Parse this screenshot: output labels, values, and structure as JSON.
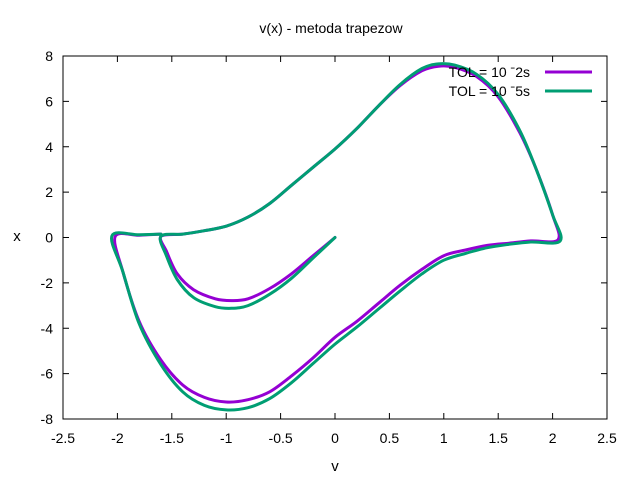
{
  "chart_data": {
    "type": "line",
    "title": "v(x)  -  metoda  trapezow",
    "xlabel": "v",
    "ylabel": "x",
    "xlim": [
      -2.5,
      2.5
    ],
    "ylim": [
      -8,
      8
    ],
    "xticks": [
      -2.5,
      -2,
      -1.5,
      -1,
      -0.5,
      0,
      0.5,
      1,
      1.5,
      2,
      2.5
    ],
    "yticks": [
      -8,
      -6,
      -4,
      -2,
      0,
      2,
      4,
      6,
      8
    ],
    "xtick_labels": [
      "-2.5",
      "-2",
      "-1.5",
      "-1",
      "-0.5",
      "0",
      "0.5",
      "1",
      "1.5",
      "2",
      "2.5"
    ],
    "ytick_labels": [
      "-8",
      "-6",
      "-4",
      "-2",
      "0",
      "2",
      "4",
      "6",
      "8"
    ],
    "grid": false,
    "legend_position": "top-right",
    "series": [
      {
        "name": "TOL = 10^-2s",
        "legend_label": "TOL = 10 ˉ2s",
        "color": "#9400d3",
        "points": [
          [
            0,
            0
          ],
          [
            -0.2,
            -0.8
          ],
          [
            -0.4,
            -1.6
          ],
          [
            -0.6,
            -2.25
          ],
          [
            -0.8,
            -2.7
          ],
          [
            -0.95,
            -2.78
          ],
          [
            -1.1,
            -2.7
          ],
          [
            -1.3,
            -2.3
          ],
          [
            -1.45,
            -1.6
          ],
          [
            -1.55,
            -0.6
          ],
          [
            -1.6,
            0.05
          ],
          [
            -1.4,
            0.15
          ],
          [
            -1.2,
            0.3
          ],
          [
            -1.0,
            0.5
          ],
          [
            -0.8,
            0.9
          ],
          [
            -0.6,
            1.5
          ],
          [
            -0.4,
            2.3
          ],
          [
            -0.2,
            3.1
          ],
          [
            0,
            3.9
          ],
          [
            0.2,
            4.8
          ],
          [
            0.4,
            5.8
          ],
          [
            0.6,
            6.7
          ],
          [
            0.8,
            7.35
          ],
          [
            0.95,
            7.55
          ],
          [
            1.1,
            7.5
          ],
          [
            1.3,
            7.1
          ],
          [
            1.5,
            6.2
          ],
          [
            1.7,
            4.6
          ],
          [
            1.85,
            3.0
          ],
          [
            2.0,
            1.0
          ],
          [
            2.05,
            -0.1
          ],
          [
            1.8,
            -0.15
          ],
          [
            1.6,
            -0.25
          ],
          [
            1.4,
            -0.35
          ],
          [
            1.2,
            -0.55
          ],
          [
            1.0,
            -0.8
          ],
          [
            0.8,
            -1.4
          ],
          [
            0.6,
            -2.1
          ],
          [
            0.4,
            -2.9
          ],
          [
            0.2,
            -3.7
          ],
          [
            0,
            -4.4
          ],
          [
            -0.2,
            -5.3
          ],
          [
            -0.4,
            -6.1
          ],
          [
            -0.6,
            -6.8
          ],
          [
            -0.8,
            -7.15
          ],
          [
            -1.0,
            -7.25
          ],
          [
            -1.2,
            -7.05
          ],
          [
            -1.4,
            -6.5
          ],
          [
            -1.6,
            -5.4
          ],
          [
            -1.8,
            -3.7
          ],
          [
            -1.95,
            -1.5
          ],
          [
            -2.02,
            0.05
          ],
          [
            -1.8,
            0.1
          ],
          [
            -1.6,
            0.15
          ]
        ]
      },
      {
        "name": "TOL = 10^-5s",
        "legend_label": "TOL = 10 ˉ5s",
        "color": "#009e73",
        "points": [
          [
            0,
            0
          ],
          [
            -0.2,
            -0.9
          ],
          [
            -0.4,
            -1.8
          ],
          [
            -0.6,
            -2.5
          ],
          [
            -0.8,
            -3.0
          ],
          [
            -0.95,
            -3.12
          ],
          [
            -1.1,
            -3.05
          ],
          [
            -1.3,
            -2.65
          ],
          [
            -1.45,
            -1.85
          ],
          [
            -1.55,
            -0.8
          ],
          [
            -1.6,
            0.05
          ],
          [
            -1.4,
            0.15
          ],
          [
            -1.2,
            0.3
          ],
          [
            -1.0,
            0.5
          ],
          [
            -0.8,
            0.9
          ],
          [
            -0.6,
            1.5
          ],
          [
            -0.4,
            2.3
          ],
          [
            -0.2,
            3.1
          ],
          [
            0,
            3.9
          ],
          [
            0.2,
            4.8
          ],
          [
            0.4,
            5.8
          ],
          [
            0.6,
            6.75
          ],
          [
            0.8,
            7.45
          ],
          [
            0.95,
            7.65
          ],
          [
            1.1,
            7.6
          ],
          [
            1.3,
            7.2
          ],
          [
            1.5,
            6.3
          ],
          [
            1.7,
            4.7
          ],
          [
            1.85,
            3.0
          ],
          [
            2.0,
            1.0
          ],
          [
            2.07,
            -0.15
          ],
          [
            1.8,
            -0.2
          ],
          [
            1.6,
            -0.3
          ],
          [
            1.4,
            -0.45
          ],
          [
            1.2,
            -0.7
          ],
          [
            1.0,
            -1.0
          ],
          [
            0.8,
            -1.6
          ],
          [
            0.6,
            -2.35
          ],
          [
            0.4,
            -3.15
          ],
          [
            0.2,
            -3.95
          ],
          [
            0,
            -4.7
          ],
          [
            -0.2,
            -5.55
          ],
          [
            -0.4,
            -6.4
          ],
          [
            -0.6,
            -7.1
          ],
          [
            -0.8,
            -7.5
          ],
          [
            -1.0,
            -7.6
          ],
          [
            -1.2,
            -7.4
          ],
          [
            -1.4,
            -6.8
          ],
          [
            -1.6,
            -5.6
          ],
          [
            -1.8,
            -3.8
          ],
          [
            -1.95,
            -1.5
          ],
          [
            -2.05,
            0.08
          ],
          [
            -1.8,
            0.12
          ],
          [
            -1.6,
            0.15
          ]
        ]
      }
    ]
  }
}
